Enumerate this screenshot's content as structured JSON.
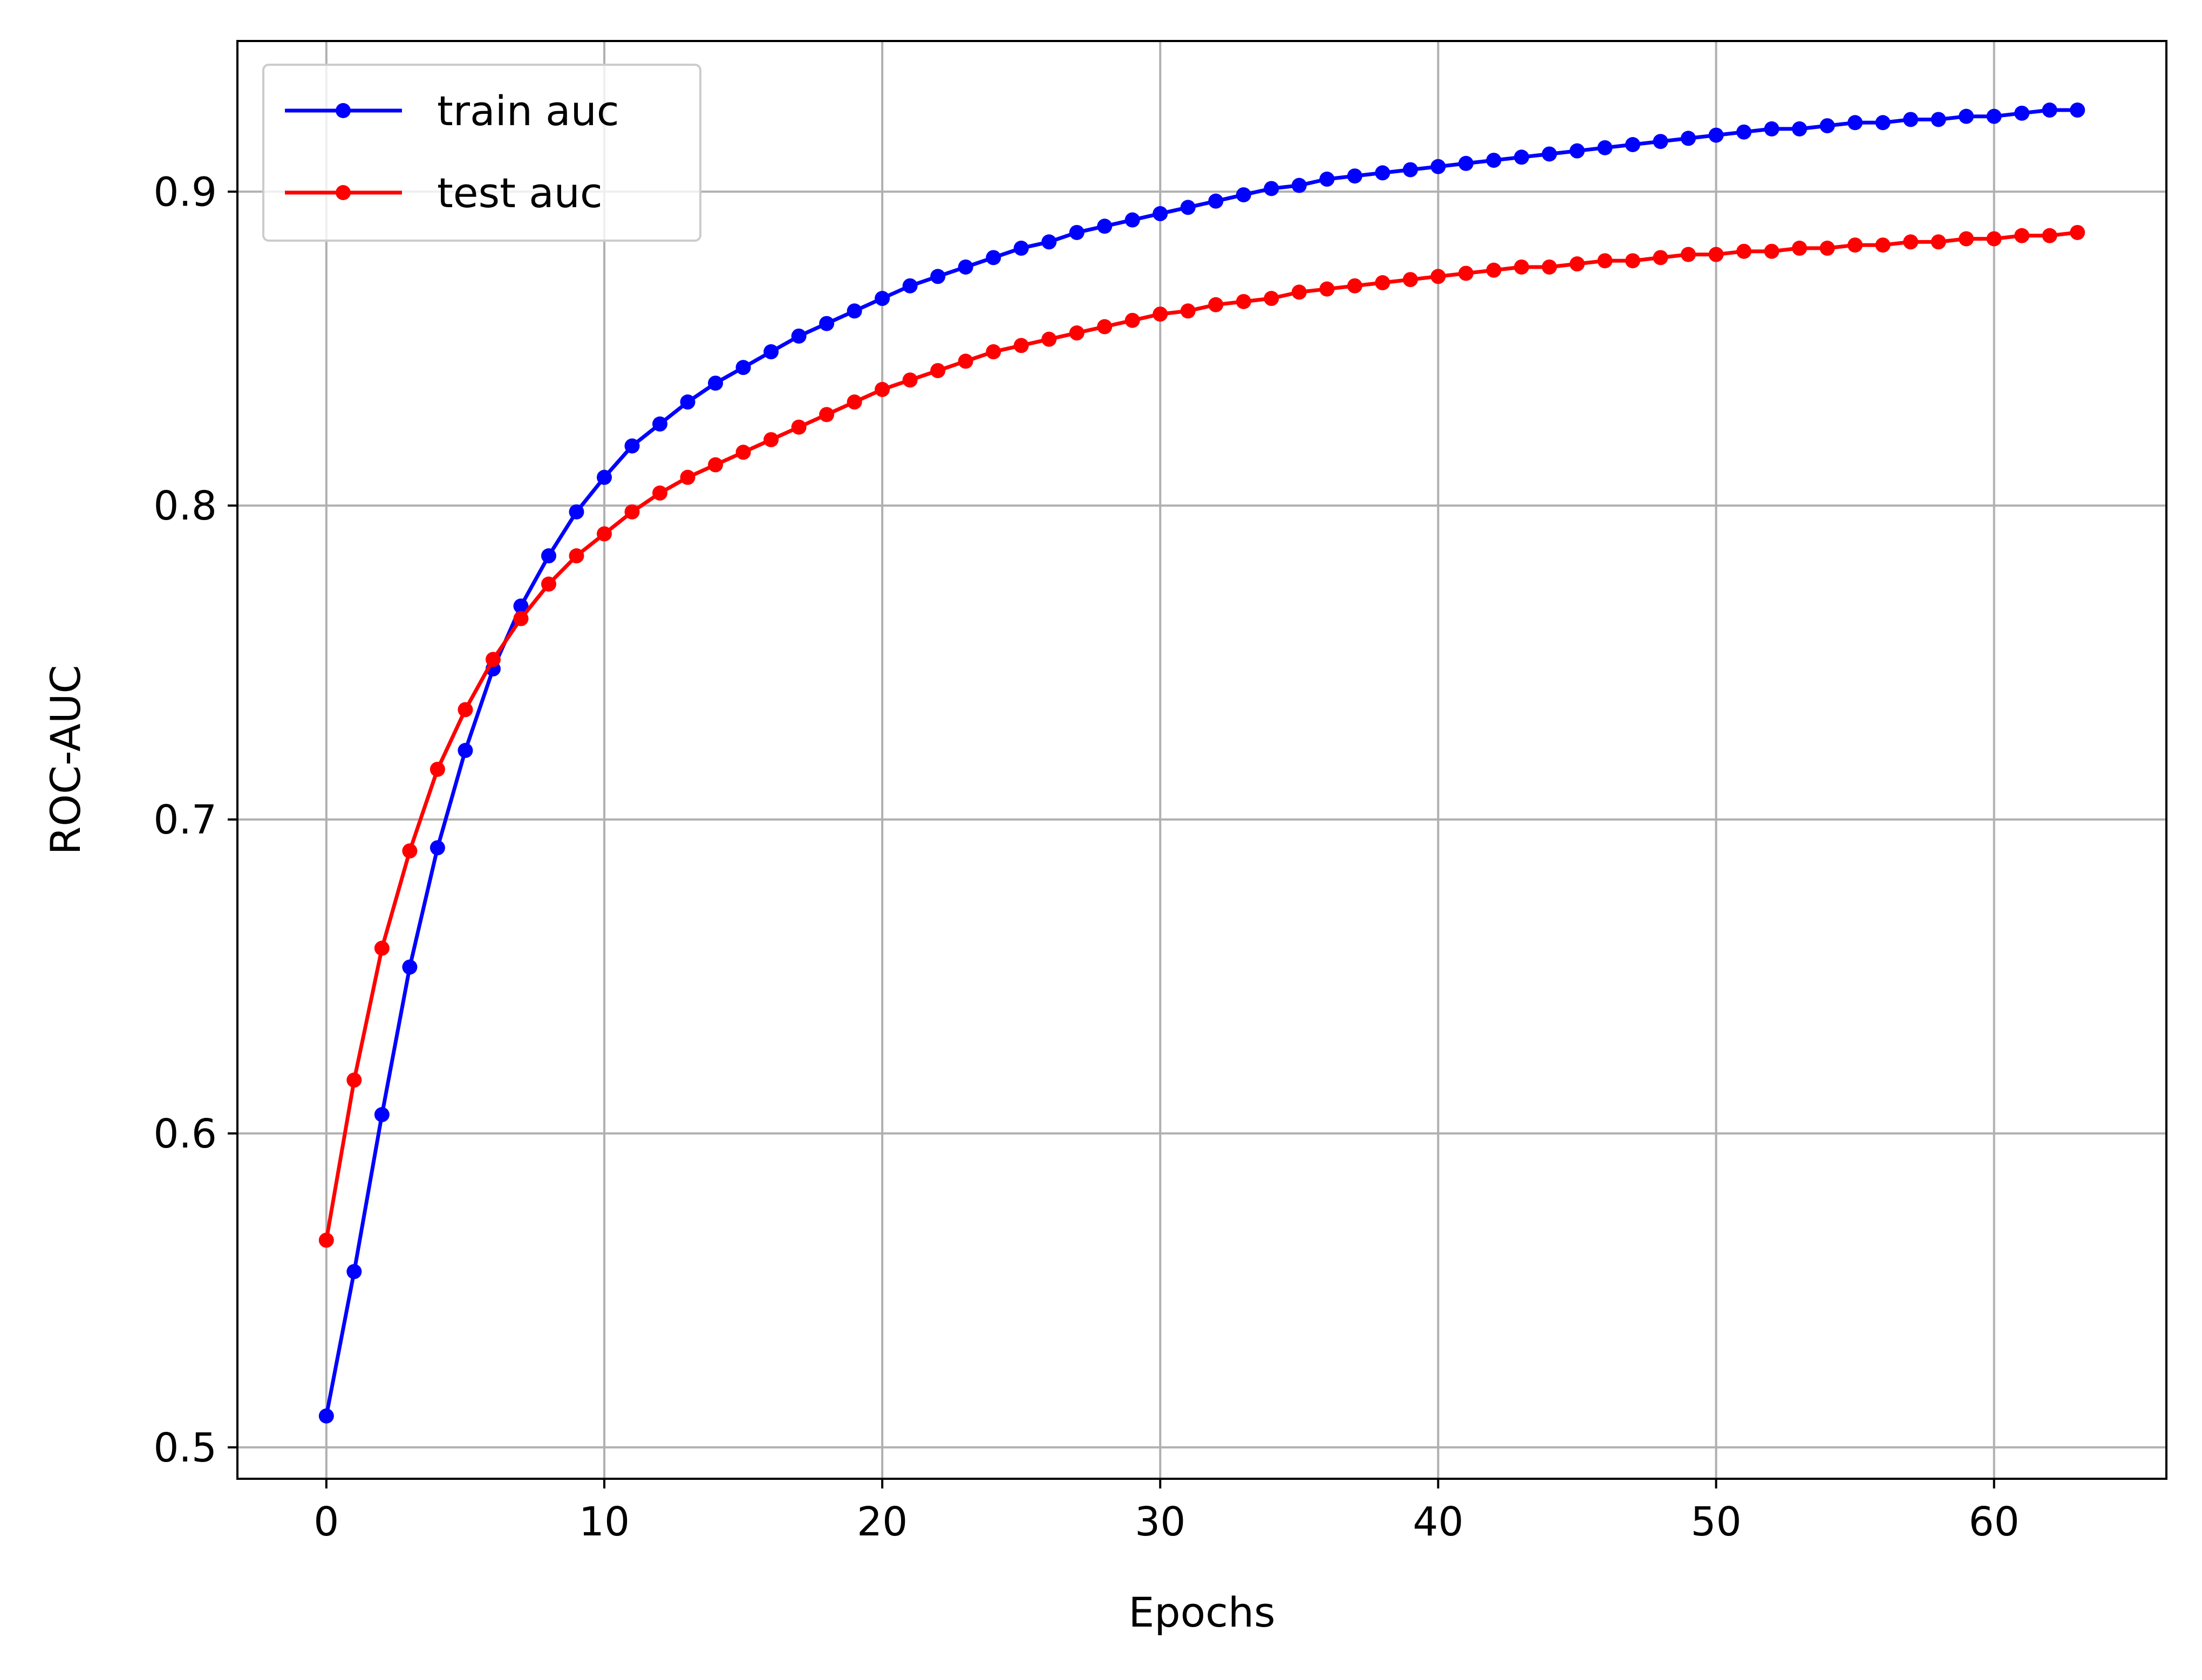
{
  "chart_data": {
    "type": "line",
    "xlabel": "Epochs",
    "ylabel": "ROC-AUC",
    "xlim": [
      -3.2,
      66.2
    ],
    "ylim": [
      0.49,
      0.948
    ],
    "xticks": [
      0,
      10,
      20,
      30,
      40,
      50,
      60
    ],
    "xtick_labels": [
      "0",
      "10",
      "20",
      "30",
      "40",
      "50",
      "60"
    ],
    "yticks": [
      0.5,
      0.6,
      0.7,
      0.8,
      0.9
    ],
    "ytick_labels": [
      "0.5",
      "0.6",
      "0.7",
      "0.8",
      "0.9"
    ],
    "grid": true,
    "legend_position": "top-left",
    "x": [
      0,
      1,
      2,
      3,
      4,
      5,
      6,
      7,
      8,
      9,
      10,
      11,
      12,
      13,
      14,
      15,
      16,
      17,
      18,
      19,
      20,
      21,
      22,
      23,
      24,
      25,
      26,
      27,
      28,
      29,
      30,
      31,
      32,
      33,
      34,
      35,
      36,
      37,
      38,
      39,
      40,
      41,
      42,
      43,
      44,
      45,
      46,
      47,
      48,
      49,
      50,
      51,
      52,
      53,
      54,
      55,
      56,
      57,
      58,
      59,
      60,
      61,
      62,
      63
    ],
    "series": [
      {
        "name": "train auc",
        "color": "#0000ff",
        "values": [
          0.51,
          0.556,
          0.606,
          0.653,
          0.691,
          0.722,
          0.748,
          0.768,
          0.784,
          0.798,
          0.809,
          0.819,
          0.826,
          0.833,
          0.839,
          0.844,
          0.849,
          0.854,
          0.858,
          0.862,
          0.866,
          0.87,
          0.873,
          0.876,
          0.879,
          0.882,
          0.884,
          0.887,
          0.889,
          0.891,
          0.893,
          0.895,
          0.897,
          0.899,
          0.901,
          0.902,
          0.904,
          0.905,
          0.906,
          0.907,
          0.908,
          0.909,
          0.91,
          0.911,
          0.912,
          0.913,
          0.914,
          0.915,
          0.916,
          0.917,
          0.918,
          0.919,
          0.92,
          0.92,
          0.921,
          0.922,
          0.922,
          0.923,
          0.923,
          0.924,
          0.924,
          0.925,
          0.926,
          0.926
        ]
      },
      {
        "name": "test auc",
        "color": "#ff0000",
        "values": [
          0.566,
          0.617,
          0.659,
          0.69,
          0.716,
          0.735,
          0.751,
          0.764,
          0.775,
          0.784,
          0.791,
          0.798,
          0.804,
          0.809,
          0.813,
          0.817,
          0.821,
          0.825,
          0.829,
          0.833,
          0.837,
          0.84,
          0.843,
          0.846,
          0.849,
          0.851,
          0.853,
          0.855,
          0.857,
          0.859,
          0.861,
          0.862,
          0.864,
          0.865,
          0.866,
          0.868,
          0.869,
          0.87,
          0.871,
          0.872,
          0.873,
          0.874,
          0.875,
          0.876,
          0.876,
          0.877,
          0.878,
          0.878,
          0.879,
          0.88,
          0.88,
          0.881,
          0.881,
          0.882,
          0.882,
          0.883,
          0.883,
          0.884,
          0.884,
          0.885,
          0.885,
          0.886,
          0.886,
          0.887
        ]
      }
    ]
  },
  "colors": {
    "grid": "#b0b0b0",
    "axes": "#000000",
    "legend_border": "#cccccc"
  }
}
